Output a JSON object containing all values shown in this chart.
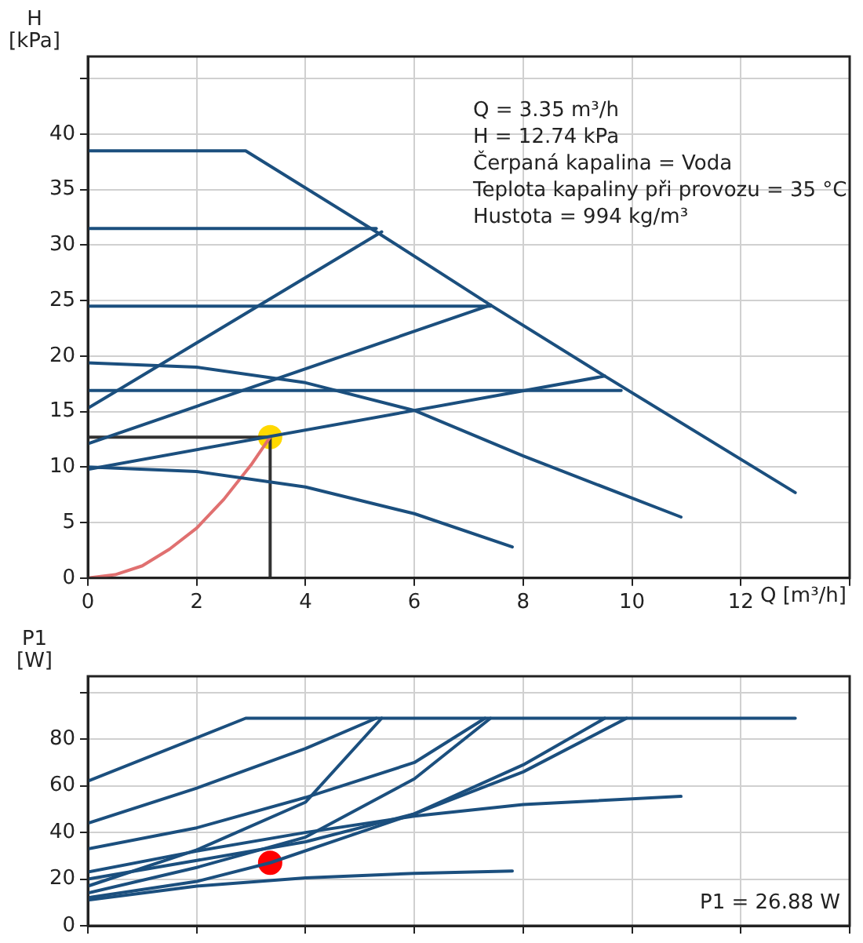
{
  "chart_data": [
    {
      "type": "line",
      "ylabel": "H\n[kPa]",
      "xlabel": "Q [m³/h]",
      "xlim": [
        0,
        14
      ],
      "ylim": [
        0,
        47
      ],
      "xticks": [
        0,
        2,
        4,
        6,
        8,
        10,
        12,
        {
          "value": 14,
          "label": null
        }
      ],
      "yticks": [
        0,
        5,
        10,
        15,
        20,
        25,
        30,
        35,
        40,
        {
          "value": 45,
          "label": null
        }
      ],
      "grid": true,
      "legend": false,
      "marker": "none",
      "line_style": "solid",
      "annotations": [
        "Q = 3.35 m³/h",
        "H = 12.74 kPa",
        "Čerpaná kapalina = Voda",
        "Teplota kapaliny při provozu = 35 °C",
        "Hustota = 994 kg/m³"
      ],
      "series": [
        {
          "color": "#1b4f7e",
          "x": [
            0,
            2.9,
            5.3,
            7.4,
            9.5,
            13
          ],
          "values": [
            38.5,
            38.5,
            31.2,
            24.6,
            18.2,
            7.7
          ]
        },
        {
          "color": "#1b4f7e",
          "x": [
            0,
            5.3
          ],
          "values": [
            31.5,
            31.5
          ]
        },
        {
          "color": "#1b4f7e",
          "x": [
            0,
            7.4
          ],
          "values": [
            24.5,
            24.5
          ]
        },
        {
          "color": "#1b4f7e",
          "x": [
            0,
            9.8
          ],
          "values": [
            16.9,
            16.9
          ]
        },
        {
          "color": "#1b4f7e",
          "x": [
            0,
            5.4
          ],
          "values": [
            15.3,
            31.2
          ]
        },
        {
          "color": "#1b4f7e",
          "x": [
            0,
            7.4
          ],
          "values": [
            12.1,
            24.6
          ]
        },
        {
          "color": "#1b4f7e",
          "x": [
            0,
            9.5
          ],
          "values": [
            9.8,
            18.2
          ]
        },
        {
          "color": "#1b4f7e",
          "x": [
            0,
            2,
            4,
            6,
            8,
            10.9
          ],
          "values": [
            19.4,
            19,
            17.6,
            15.1,
            11,
            5.5
          ]
        },
        {
          "color": "#1b4f7e",
          "x": [
            0,
            2,
            4,
            6,
            7.8
          ],
          "values": [
            10,
            9.6,
            8.2,
            5.8,
            2.8
          ]
        },
        {
          "color": "#e07070",
          "x": [
            0,
            0.5,
            1,
            1.5,
            2,
            2.5,
            3,
            3.35
          ],
          "values": [
            0,
            0.3,
            1.1,
            2.6,
            4.5,
            7.1,
            10.2,
            12.7
          ]
        },
        {
          "color": "#333333",
          "x": [
            0,
            3.35,
            3.35
          ],
          "values": [
            12.7,
            12.7,
            0
          ]
        },
        {
          "type": "scatter",
          "marker": "circle",
          "color": "#ffd800",
          "x": [
            3.35
          ],
          "values": [
            12.7
          ]
        }
      ]
    },
    {
      "type": "line",
      "ylabel": "P1\n[W]",
      "xlim": [
        0,
        14
      ],
      "ylim": [
        0,
        107
      ],
      "xticks": [
        0,
        2,
        4,
        6,
        8,
        10,
        12,
        14
      ],
      "yticks": [
        0,
        20,
        40,
        60,
        80,
        {
          "value": 100,
          "label": null
        }
      ],
      "tick_labels": "y",
      "grid": true,
      "legend": false,
      "marker": "none",
      "line_style": "solid",
      "annotations": [
        "P1 = 26.88 W"
      ],
      "series": [
        {
          "color": "#1b4f7e",
          "x": [
            0,
            2.9,
            13
          ],
          "values": [
            62,
            89,
            89
          ]
        },
        {
          "color": "#1b4f7e",
          "x": [
            0,
            2,
            4,
            5.3
          ],
          "values": [
            44,
            59,
            76,
            89
          ]
        },
        {
          "color": "#1b4f7e",
          "x": [
            0,
            2,
            4,
            5.4
          ],
          "values": [
            17,
            32.5,
            53,
            89
          ]
        },
        {
          "color": "#1b4f7e",
          "x": [
            0,
            2,
            4,
            6,
            7.3
          ],
          "values": [
            33,
            42,
            55,
            70,
            89
          ]
        },
        {
          "color": "#1b4f7e",
          "x": [
            0,
            2,
            4,
            6,
            7.4
          ],
          "values": [
            14,
            25,
            38,
            63,
            89
          ]
        },
        {
          "color": "#1b4f7e",
          "x": [
            0,
            2,
            4,
            6,
            8,
            9.9
          ],
          "values": [
            20,
            28,
            36,
            48,
            66,
            89
          ]
        },
        {
          "color": "#1b4f7e",
          "x": [
            0,
            2,
            3.35,
            6,
            8,
            9.5
          ],
          "values": [
            12,
            19,
            27,
            48,
            69,
            89
          ]
        },
        {
          "color": "#1b4f7e",
          "x": [
            0,
            2,
            4,
            6,
            8,
            10.9
          ],
          "values": [
            23,
            32,
            40,
            47,
            52,
            55.5
          ]
        },
        {
          "color": "#1b4f7e",
          "x": [
            0,
            2,
            4,
            6,
            7.8
          ],
          "values": [
            11,
            17,
            20.5,
            22.5,
            23.5
          ]
        },
        {
          "type": "scatter",
          "marker": "circle",
          "color": "#ff0000",
          "x": [
            3.35
          ],
          "values": [
            27
          ]
        }
      ]
    }
  ]
}
